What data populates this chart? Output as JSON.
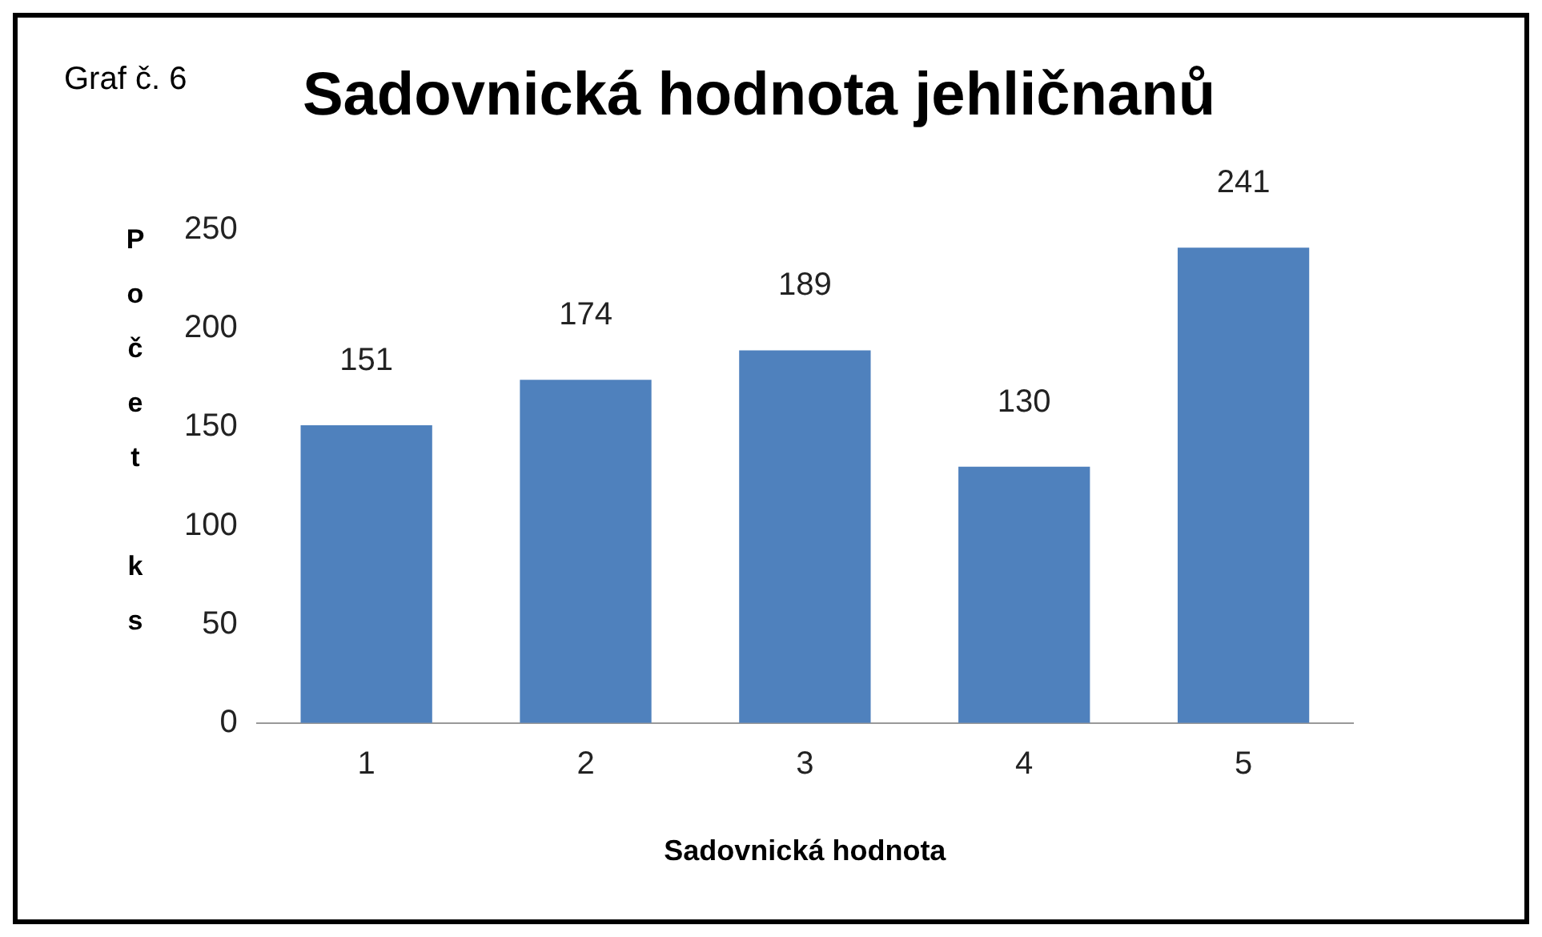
{
  "chart_data": {
    "type": "bar",
    "title": "Sadovnická hodnota jehličnanů",
    "annotations": [
      "Graf č. 6"
    ],
    "xlabel": "Sadovnická hodnota",
    "ylabel": "Počet ks",
    "categories": [
      "1",
      "2",
      "3",
      "4",
      "5"
    ],
    "series": [
      {
        "color": "#4f81bd",
        "values": [
          151,
          174,
          189,
          130,
          241
        ]
      }
    ],
    "ylim": [
      0,
      250
    ],
    "yticks": [
      0,
      50,
      100,
      150,
      200,
      250
    ],
    "grid": false,
    "legend": false,
    "data_labels": true
  }
}
